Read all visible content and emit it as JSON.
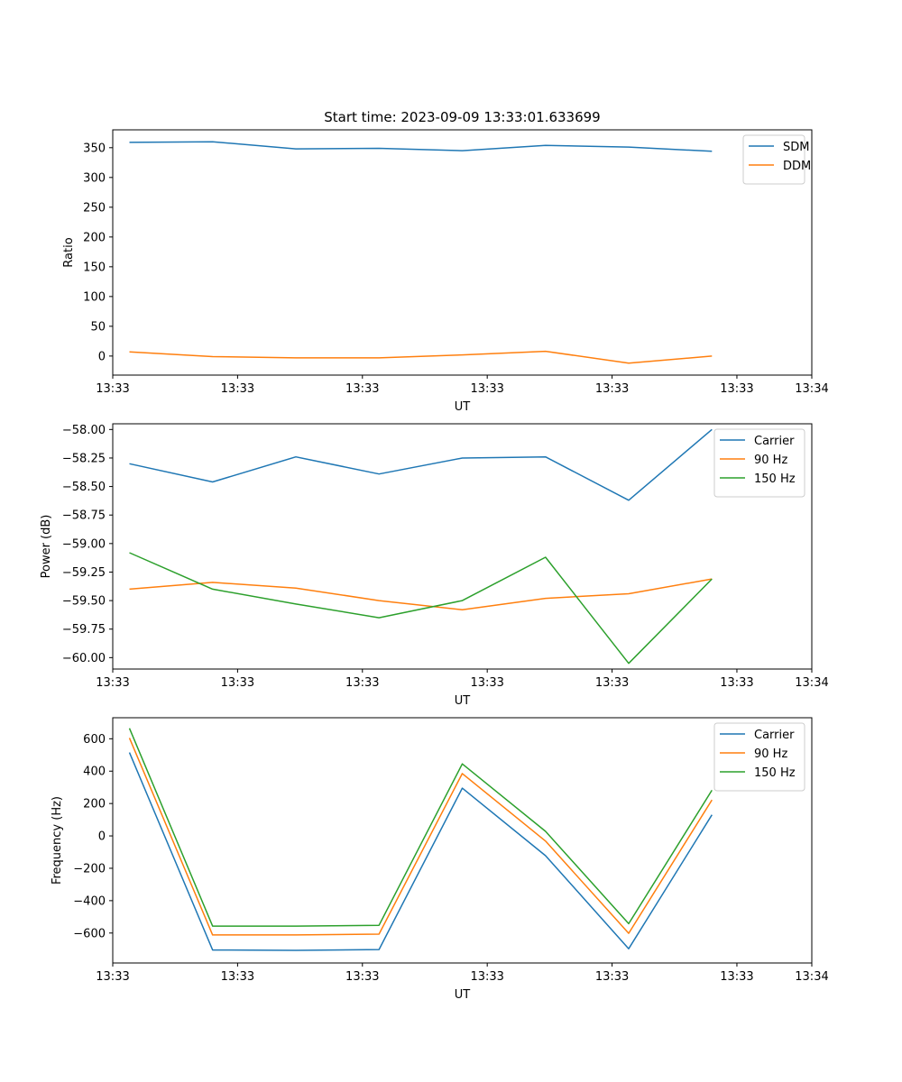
{
  "chart_data": [
    {
      "type": "line",
      "title": "Start time: 2023-09-09 13:33:01.633699",
      "xlabel": "UT",
      "ylabel": "Ratio",
      "x": [
        1,
        2,
        3,
        4,
        5,
        6,
        7,
        8
      ],
      "xlim": [
        0.8,
        9.2
      ],
      "xticks": [
        0.8,
        2.3,
        3.8,
        5.3,
        6.8,
        8.3,
        9.2
      ],
      "xticklabels": [
        "13:33",
        "13:33",
        "13:33",
        "13:33",
        "13:33",
        "13:33",
        "13:34"
      ],
      "ylim": [
        -32,
        380
      ],
      "yticks": [
        0,
        50,
        100,
        150,
        200,
        250,
        300,
        350
      ],
      "yticklabels": [
        "0",
        "50",
        "100",
        "150",
        "200",
        "250",
        "300",
        "350"
      ],
      "legend": "upper-right",
      "series": [
        {
          "name": "SDM",
          "color": "#1f77b4",
          "values": [
            359,
            360,
            348,
            349,
            345,
            354,
            351,
            344
          ]
        },
        {
          "name": "DDM",
          "color": "#ff7f0e",
          "values": [
            7,
            -1,
            -3,
            -3,
            2,
            8,
            -12,
            0
          ]
        }
      ]
    },
    {
      "type": "line",
      "title": "",
      "xlabel": "UT",
      "ylabel": "Power (dB)",
      "x": [
        1,
        2,
        3,
        4,
        5,
        6,
        7,
        8
      ],
      "xlim": [
        0.8,
        9.2
      ],
      "xticks": [
        0.8,
        2.3,
        3.8,
        5.3,
        6.8,
        8.3,
        9.2
      ],
      "xticklabels": [
        "13:33",
        "13:33",
        "13:33",
        "13:33",
        "13:33",
        "13:33",
        "13:34"
      ],
      "ylim": [
        -60.1,
        -57.95
      ],
      "yticks": [
        -60.0,
        -59.75,
        -59.5,
        -59.25,
        -59.0,
        -58.75,
        -58.5,
        -58.25,
        -58.0
      ],
      "yticklabels": [
        "−60.00",
        "−59.75",
        "−59.50",
        "−59.25",
        "−59.00",
        "−58.75",
        "−58.50",
        "−58.25",
        "−58.00"
      ],
      "legend": "upper-right",
      "series": [
        {
          "name": "Carrier",
          "color": "#1f77b4",
          "values": [
            -58.3,
            -58.46,
            -58.24,
            -58.39,
            -58.25,
            -58.24,
            -58.62,
            -58.0
          ]
        },
        {
          "name": "90 Hz",
          "color": "#ff7f0e",
          "values": [
            -59.4,
            -59.34,
            -59.39,
            -59.5,
            -59.58,
            -59.48,
            -59.44,
            -59.31
          ]
        },
        {
          "name": "150 Hz",
          "color": "#2ca02c",
          "values": [
            -59.08,
            -59.4,
            -59.53,
            -59.65,
            -59.5,
            -59.12,
            -60.05,
            -59.31
          ]
        }
      ]
    },
    {
      "type": "line",
      "title": "",
      "xlabel": "UT",
      "ylabel": "Frequency (Hz)",
      "x": [
        1,
        2,
        3,
        4,
        5,
        6,
        7,
        8
      ],
      "xlim": [
        0.8,
        9.2
      ],
      "xticks": [
        0.8,
        2.3,
        3.8,
        5.3,
        6.8,
        8.3,
        9.2
      ],
      "xticklabels": [
        "13:33",
        "13:33",
        "13:33",
        "13:33",
        "13:33",
        "13:33",
        "13:34"
      ],
      "ylim": [
        -785,
        730
      ],
      "yticks": [
        -600,
        -400,
        -200,
        0,
        200,
        400,
        600
      ],
      "yticklabels": [
        "−600",
        "−400",
        "−200",
        "0",
        "200",
        "400",
        "600"
      ],
      "legend": "upper-right",
      "series": [
        {
          "name": "Carrier",
          "color": "#1f77b4",
          "values": [
            515,
            -705,
            -707,
            -702,
            295,
            -122,
            -697,
            130
          ]
        },
        {
          "name": "90 Hz",
          "color": "#ff7f0e",
          "values": [
            605,
            -612,
            -612,
            -607,
            385,
            -32,
            -602,
            222
          ]
        },
        {
          "name": "150 Hz",
          "color": "#2ca02c",
          "values": [
            665,
            -557,
            -557,
            -552,
            445,
            28,
            -542,
            282
          ]
        }
      ]
    }
  ]
}
